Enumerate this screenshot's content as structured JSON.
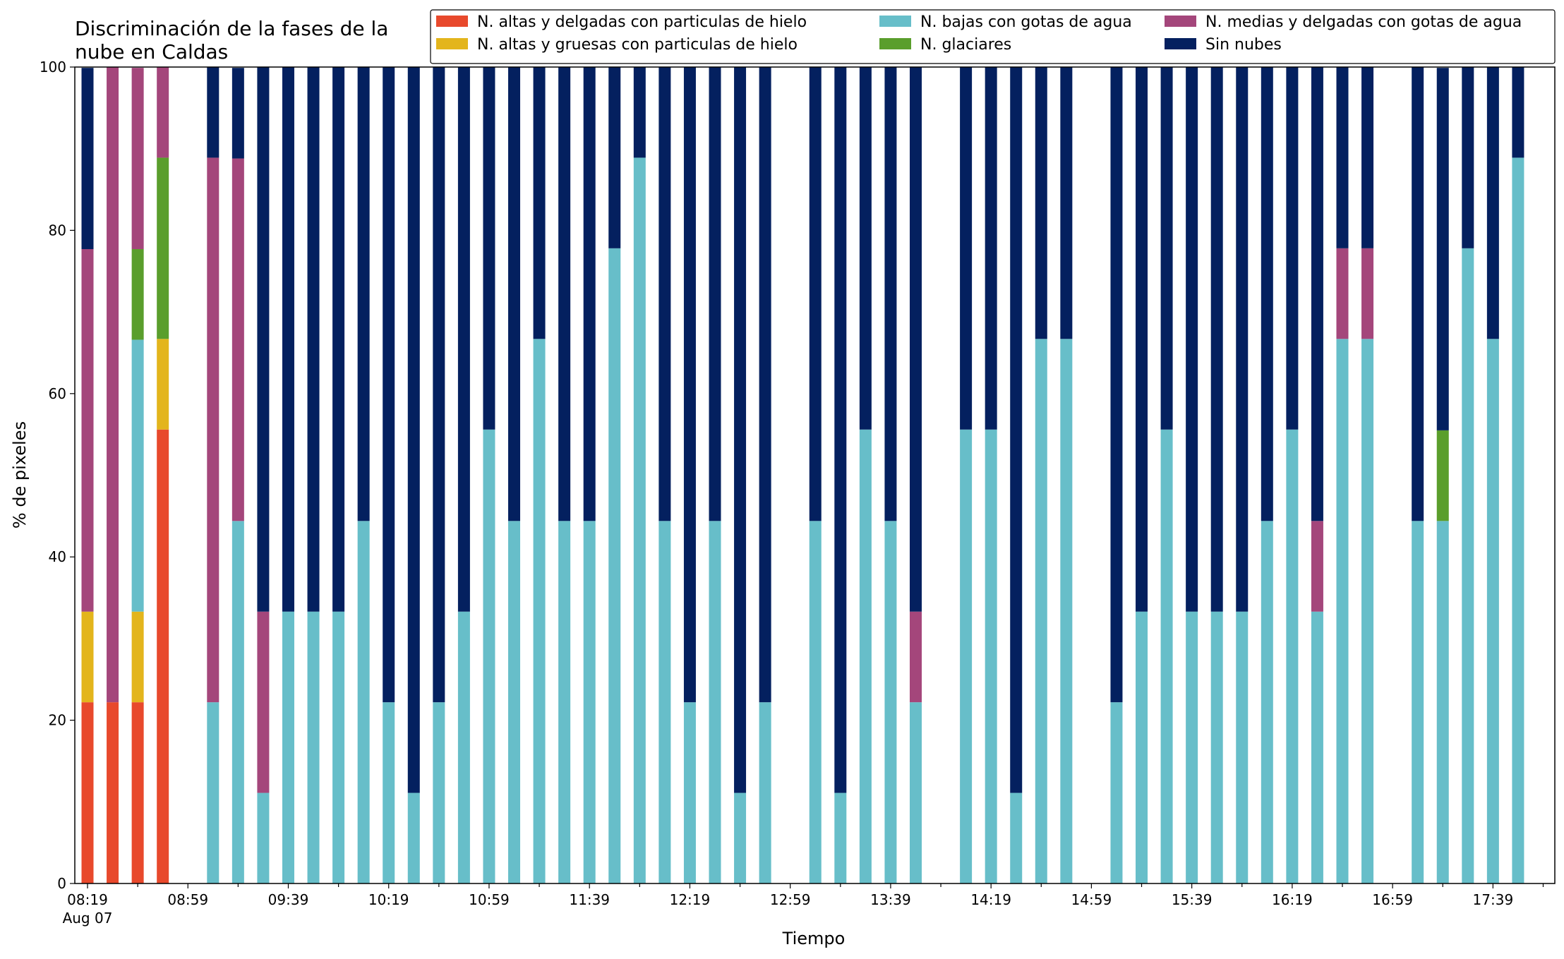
{
  "chart_data": {
    "type": "bar",
    "stacked": true,
    "title": "Discriminación de la fases de la nube en Caldas",
    "title_lines": [
      "Discriminación de la fases de la",
      "nube en Caldas"
    ],
    "xlabel": "Tiempo",
    "ylabel": "% de pixeles",
    "ylim": [
      0,
      100
    ],
    "yticks": [
      0,
      20,
      40,
      60,
      80,
      100
    ],
    "grid": false,
    "legend_position": "top-right",
    "x_start": "08:19",
    "x_step_minutes": 10,
    "xtick_labels": [
      "08:19",
      "08:59",
      "09:39",
      "10:19",
      "10:59",
      "11:39",
      "12:19",
      "12:59",
      "13:39",
      "14:19",
      "14:59",
      "15:39",
      "16:19",
      "16:59",
      "17:39"
    ],
    "x_date_label": "Aug 07",
    "series": [
      {
        "name": "N. altas y delgadas con particulas de hielo",
        "color": "#e8492c",
        "values": [
          22.2,
          22.2,
          22.2,
          55.6,
          null,
          0,
          0,
          0,
          0,
          0,
          0,
          0,
          0,
          0,
          0,
          0,
          0,
          0,
          0,
          0,
          0,
          0,
          0,
          0,
          0,
          0,
          0,
          0,
          null,
          0,
          0,
          0,
          0,
          0,
          null,
          0,
          0,
          0,
          0,
          0,
          null,
          0,
          0,
          0,
          0,
          0,
          0,
          0,
          0,
          0,
          0,
          0,
          null,
          0,
          0,
          0,
          0,
          0
        ]
      },
      {
        "name": "N. altas y gruesas con particulas de hielo",
        "color": "#e3b51c",
        "values": [
          11.1,
          0,
          11.1,
          11.1,
          null,
          0,
          0,
          0,
          0,
          0,
          0,
          0,
          0,
          0,
          0,
          0,
          0,
          0,
          0,
          0,
          0,
          0,
          0,
          0,
          0,
          0,
          0,
          0,
          null,
          0,
          0,
          0,
          0,
          0,
          null,
          0,
          0,
          0,
          0,
          0,
          null,
          0,
          0,
          0,
          0,
          0,
          0,
          0,
          0,
          0,
          0,
          0,
          null,
          0,
          0,
          0,
          0,
          0
        ]
      },
      {
        "name": "N. bajas con gotas de agua",
        "color": "#67bec9",
        "values": [
          0,
          0,
          33.3,
          0,
          null,
          22.2,
          44.4,
          11.1,
          33.3,
          33.3,
          33.3,
          44.4,
          22.2,
          11.1,
          22.2,
          33.3,
          55.6,
          44.4,
          66.7,
          44.4,
          44.4,
          77.8,
          88.9,
          44.4,
          22.2,
          44.4,
          11.1,
          22.2,
          null,
          44.4,
          11.1,
          55.6,
          44.4,
          22.2,
          null,
          55.6,
          55.6,
          11.1,
          66.7,
          66.7,
          null,
          22.2,
          33.3,
          55.6,
          33.3,
          33.3,
          33.3,
          44.4,
          55.6,
          33.3,
          66.7,
          66.7,
          null,
          44.4,
          44.4,
          77.8,
          66.7,
          88.9
        ]
      },
      {
        "name": "N. glaciares",
        "color": "#5a9e2c",
        "values": [
          0,
          0,
          11.1,
          22.2,
          null,
          0,
          0,
          0,
          0,
          0,
          0,
          0,
          0,
          0,
          0,
          0,
          0,
          0,
          0,
          0,
          0,
          0,
          0,
          0,
          0,
          0,
          0,
          0,
          null,
          0,
          0,
          0,
          0,
          0,
          null,
          0,
          0,
          0,
          0,
          0,
          null,
          0,
          0,
          0,
          0,
          0,
          0,
          0,
          0,
          0,
          0,
          0,
          null,
          0,
          11.1,
          0,
          0,
          0
        ]
      },
      {
        "name": "N. medias y delgadas con gotas de agua",
        "color": "#a4467b",
        "values": [
          44.4,
          77.8,
          22.2,
          11.1,
          null,
          66.7,
          44.4,
          22.2,
          0,
          0,
          0,
          0,
          0,
          0,
          0,
          0,
          0,
          0,
          0,
          0,
          0,
          0,
          0,
          0,
          0,
          0,
          0,
          0,
          null,
          0,
          0,
          0,
          0,
          11.1,
          null,
          0,
          0,
          0,
          0,
          0,
          null,
          0,
          0,
          0,
          0,
          0,
          0,
          0,
          0,
          11.1,
          11.1,
          11.1,
          null,
          0,
          0,
          0,
          0,
          0
        ]
      },
      {
        "name": "Sin nubes",
        "color": "#04205f",
        "values": [
          22.2,
          0,
          0,
          0,
          null,
          11.1,
          11.1,
          66.7,
          66.7,
          66.7,
          66.7,
          55.6,
          77.8,
          88.9,
          77.8,
          66.7,
          44.4,
          55.6,
          33.3,
          55.6,
          55.6,
          22.2,
          11.1,
          55.6,
          77.8,
          55.6,
          88.9,
          77.8,
          null,
          55.6,
          88.9,
          44.4,
          55.6,
          66.7,
          null,
          44.4,
          44.4,
          88.9,
          33.3,
          33.3,
          null,
          77.8,
          66.7,
          44.4,
          66.7,
          66.7,
          66.7,
          55.6,
          44.4,
          55.6,
          22.2,
          22.2,
          null,
          55.6,
          44.4,
          22.2,
          33.3,
          11.1
        ]
      }
    ]
  }
}
